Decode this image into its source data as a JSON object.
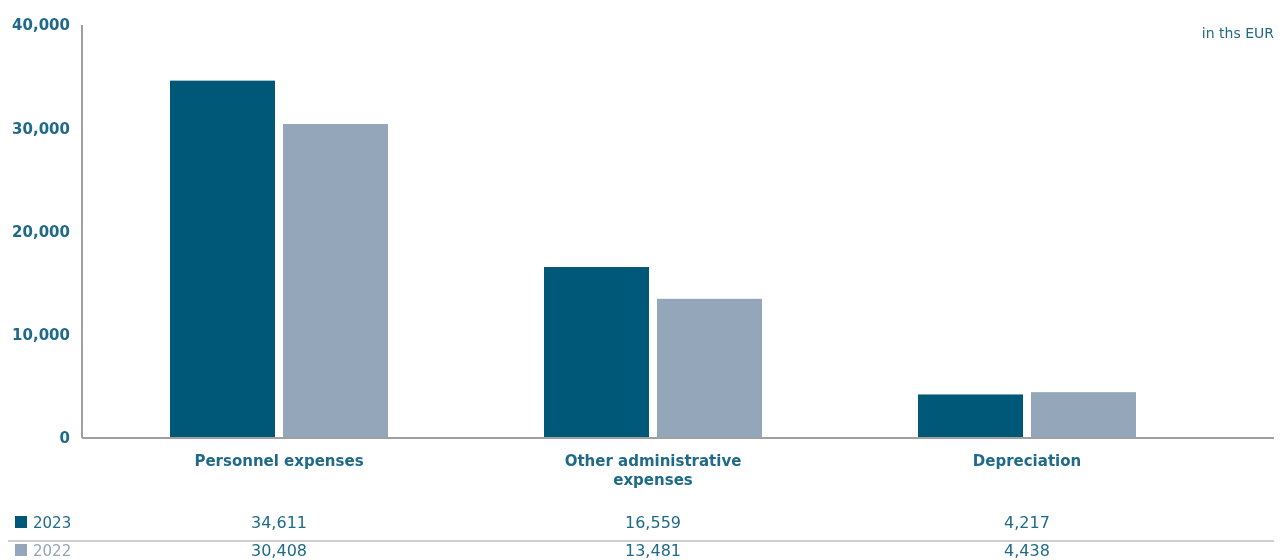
{
  "chart_data": {
    "type": "bar",
    "ylabel": "in ths EUR",
    "categories": [
      "Personnel expenses",
      "Other administrative expenses",
      "Depreciation"
    ],
    "series": [
      {
        "name": "2023",
        "color": "#005878",
        "values": [
          34611,
          16559,
          4217
        ],
        "value_labels": [
          "34,611",
          "16,559",
          "4,217"
        ]
      },
      {
        "name": "2022",
        "color": "#94a6ba",
        "values": [
          30408,
          13481,
          4438
        ],
        "value_labels": [
          "30,408",
          "13,481",
          "4,438"
        ]
      }
    ],
    "ylim": [
      0,
      40000
    ],
    "yticks": [
      {
        "value": 0,
        "label": "0"
      },
      {
        "value": 10000,
        "label": "10,000"
      },
      {
        "value": 20000,
        "label": "20,000"
      },
      {
        "value": 30000,
        "label": "30,000"
      },
      {
        "value": 40000,
        "label": "40,000"
      }
    ],
    "legend": "bottom left"
  }
}
